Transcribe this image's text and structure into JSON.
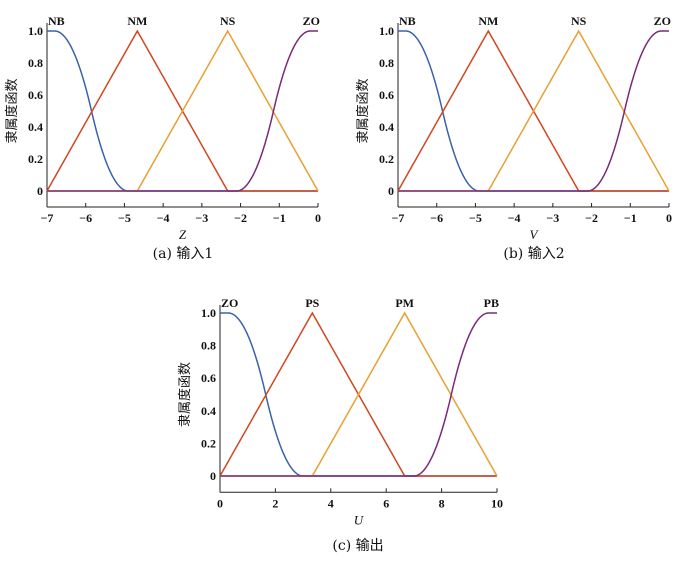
{
  "chart_data": [
    {
      "type": "line",
      "caption": "(a) 输入1",
      "xlabel": "Z",
      "ylabel": "隶属度函数",
      "xlim": [
        -7,
        0
      ],
      "ylim": [
        -0.1,
        1.0
      ],
      "xticks": [
        -7,
        -6,
        -5,
        -4,
        -3,
        -2,
        -1,
        0
      ],
      "xtick_labels": [
        "−7",
        "−6",
        "−5",
        "−4",
        "−3",
        "−2",
        "−1",
        "0"
      ],
      "yticks": [
        0,
        0.2,
        0.4,
        0.6,
        0.8,
        1.0
      ],
      "ytick_labels": [
        "0",
        "0.2",
        "0.4",
        "0.6",
        "0.8",
        "1.0"
      ],
      "grid": false,
      "series": [
        {
          "name": "NB",
          "shape": "zmf",
          "params": [
            -6.8,
            -4.9
          ],
          "color": "#3a62a8"
        },
        {
          "name": "NM",
          "shape": "trimf",
          "params": [
            -7,
            -4.667,
            -2.333
          ],
          "color": "#d2461e"
        },
        {
          "name": "NS",
          "shape": "trimf",
          "params": [
            -4.667,
            -2.333,
            0
          ],
          "color": "#e8a030"
        },
        {
          "name": "ZO",
          "shape": "smf",
          "params": [
            -2.1,
            -0.2
          ],
          "color": "#7a2a7a"
        }
      ]
    },
    {
      "type": "line",
      "caption": "(b) 输入2",
      "xlabel": "V",
      "ylabel": "隶属度函数",
      "xlim": [
        -7,
        0
      ],
      "ylim": [
        -0.1,
        1.0
      ],
      "xticks": [
        -7,
        -6,
        -5,
        -4,
        -3,
        -2,
        -1,
        0
      ],
      "xtick_labels": [
        "−7",
        "−6",
        "−5",
        "−4",
        "−3",
        "−2",
        "−1",
        "0"
      ],
      "yticks": [
        0,
        0.2,
        0.4,
        0.6,
        0.8,
        1.0
      ],
      "ytick_labels": [
        "0",
        "0.2",
        "0.4",
        "0.6",
        "0.8",
        "1.0"
      ],
      "grid": false,
      "series": [
        {
          "name": "NB",
          "shape": "zmf",
          "params": [
            -6.8,
            -4.9
          ],
          "color": "#3a62a8"
        },
        {
          "name": "NM",
          "shape": "trimf",
          "params": [
            -7,
            -4.667,
            -2.333
          ],
          "color": "#d2461e"
        },
        {
          "name": "NS",
          "shape": "trimf",
          "params": [
            -4.667,
            -2.333,
            0
          ],
          "color": "#e8a030"
        },
        {
          "name": "ZO",
          "shape": "smf",
          "params": [
            -2.1,
            -0.2
          ],
          "color": "#7a2a7a"
        }
      ]
    },
    {
      "type": "line",
      "caption": "(c) 输出",
      "xlabel": "U",
      "ylabel": "隶属度函数",
      "xlim": [
        0,
        10
      ],
      "ylim": [
        -0.1,
        1.0
      ],
      "xticks": [
        0,
        2,
        4,
        6,
        8,
        10
      ],
      "xtick_labels": [
        "0",
        "2",
        "4",
        "6",
        "8",
        "10"
      ],
      "yticks": [
        0,
        0.2,
        0.4,
        0.6,
        0.8,
        1.0
      ],
      "ytick_labels": [
        "0",
        "0.2",
        "0.4",
        "0.6",
        "0.8",
        "1.0"
      ],
      "grid": false,
      "series": [
        {
          "name": "ZO",
          "shape": "zmf",
          "params": [
            0.3,
            3.0
          ],
          "color": "#3a62a8"
        },
        {
          "name": "PS",
          "shape": "trimf",
          "params": [
            0,
            3.333,
            6.667
          ],
          "color": "#d2461e"
        },
        {
          "name": "PM",
          "shape": "trimf",
          "params": [
            3.333,
            6.667,
            10
          ],
          "color": "#e8a030"
        },
        {
          "name": "PB",
          "shape": "smf",
          "params": [
            7.0,
            9.7
          ],
          "color": "#7a2a7a"
        }
      ]
    }
  ]
}
